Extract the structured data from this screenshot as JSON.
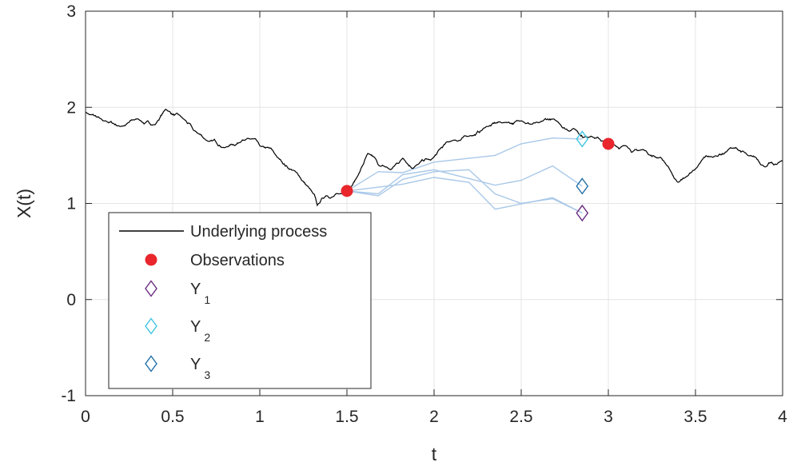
{
  "chart_data": {
    "type": "line",
    "xlabel": "t",
    "ylabel": "X(t)",
    "xlim": [
      0,
      4
    ],
    "ylim": [
      -1,
      3
    ],
    "xticks": [
      0,
      0.5,
      1,
      1.5,
      2,
      2.5,
      3,
      3.5,
      4
    ],
    "xtick_labels": [
      "0",
      "0.5",
      "1",
      "1.5",
      "2",
      "2.5",
      "3",
      "3.5",
      "4"
    ],
    "yticks": [
      -1,
      0,
      1,
      2,
      3
    ],
    "ytick_labels": [
      "-1",
      "0",
      "1",
      "2",
      "3"
    ],
    "grid": true,
    "legend": {
      "placement": "bottom-left",
      "entries": [
        {
          "label": "Underlying process",
          "symbol": "line",
          "color": "#000000"
        },
        {
          "label": "Observations",
          "symbol": "filled-circle",
          "color": "#e8262c"
        },
        {
          "label_main": "Y",
          "label_sub": "1",
          "symbol": "diamond",
          "color": "#6a2c80"
        },
        {
          "label_main": "Y",
          "label_sub": "2",
          "symbol": "diamond",
          "color": "#3ec6e0"
        },
        {
          "label_main": "Y",
          "label_sub": "3",
          "symbol": "diamond",
          "color": "#1f6fa8"
        }
      ]
    },
    "underlying_process": {
      "color": "#000000",
      "anchors": [
        [
          0,
          1.95
        ],
        [
          0.1,
          1.86
        ],
        [
          0.2,
          1.8
        ],
        [
          0.3,
          1.88
        ],
        [
          0.4,
          1.82
        ],
        [
          0.46,
          1.98
        ],
        [
          0.55,
          1.9
        ],
        [
          0.62,
          1.76
        ],
        [
          0.7,
          1.65
        ],
        [
          0.8,
          1.58
        ],
        [
          0.9,
          1.66
        ],
        [
          1.0,
          1.6
        ],
        [
          1.1,
          1.48
        ],
        [
          1.2,
          1.34
        ],
        [
          1.3,
          1.12
        ],
        [
          1.33,
          0.98
        ],
        [
          1.38,
          1.08
        ],
        [
          1.45,
          1.1
        ],
        [
          1.5,
          1.13
        ],
        [
          1.56,
          1.28
        ],
        [
          1.62,
          1.52
        ],
        [
          1.68,
          1.4
        ],
        [
          1.75,
          1.35
        ],
        [
          1.82,
          1.47
        ],
        [
          1.9,
          1.4
        ],
        [
          1.98,
          1.45
        ],
        [
          2.1,
          1.65
        ],
        [
          2.2,
          1.7
        ],
        [
          2.3,
          1.8
        ],
        [
          2.4,
          1.84
        ],
        [
          2.5,
          1.86
        ],
        [
          2.6,
          1.84
        ],
        [
          2.7,
          1.86
        ],
        [
          2.8,
          1.78
        ],
        [
          2.9,
          1.7
        ],
        [
          3.0,
          1.62
        ],
        [
          3.1,
          1.6
        ],
        [
          3.2,
          1.56
        ],
        [
          3.3,
          1.48
        ],
        [
          3.35,
          1.36
        ],
        [
          3.4,
          1.22
        ],
        [
          3.45,
          1.28
        ],
        [
          3.5,
          1.36
        ],
        [
          3.6,
          1.48
        ],
        [
          3.7,
          1.58
        ],
        [
          3.8,
          1.5
        ],
        [
          3.9,
          1.38
        ],
        [
          3.95,
          1.4
        ],
        [
          4.0,
          1.44
        ]
      ],
      "roughness": 0.022,
      "seed": 7
    },
    "observations": {
      "color": "#e8262c",
      "points": [
        [
          1.5,
          1.13
        ],
        [
          3.0,
          1.62
        ]
      ]
    },
    "candidate_paths": {
      "color": "#a9c8e8",
      "paths": [
        [
          [
            1.5,
            1.13
          ],
          [
            1.68,
            1.33
          ],
          [
            1.82,
            1.32
          ],
          [
            2.0,
            1.43
          ],
          [
            2.35,
            1.5
          ],
          [
            2.5,
            1.62
          ],
          [
            2.68,
            1.68
          ],
          [
            2.85,
            1.67
          ]
        ],
        [
          [
            1.5,
            1.13
          ],
          [
            1.68,
            1.1
          ],
          [
            1.82,
            1.3
          ],
          [
            2.0,
            1.35
          ],
          [
            2.35,
            1.19
          ],
          [
            2.5,
            1.24
          ],
          [
            2.68,
            1.39
          ],
          [
            2.85,
            1.18
          ]
        ],
        [
          [
            1.5,
            1.13
          ],
          [
            1.68,
            1.08
          ],
          [
            1.82,
            1.25
          ],
          [
            2.0,
            1.33
          ],
          [
            2.2,
            1.35
          ],
          [
            2.35,
            1.1
          ],
          [
            2.5,
            1.0
          ],
          [
            2.68,
            1.05
          ],
          [
            2.85,
            0.9
          ]
        ],
        [
          [
            1.5,
            1.13
          ],
          [
            1.82,
            1.2
          ],
          [
            2.0,
            1.27
          ],
          [
            2.2,
            1.22
          ],
          [
            2.35,
            0.94
          ],
          [
            2.68,
            1.06
          ],
          [
            2.85,
            0.9
          ]
        ]
      ]
    },
    "endpoints": {
      "Y1": {
        "x": 2.85,
        "y": 0.9,
        "color": "#6a2c80"
      },
      "Y2": {
        "x": 2.85,
        "y": 1.67,
        "color": "#3ec6e0"
      },
      "Y3": {
        "x": 2.85,
        "y": 1.18,
        "color": "#1f6fa8"
      }
    }
  }
}
